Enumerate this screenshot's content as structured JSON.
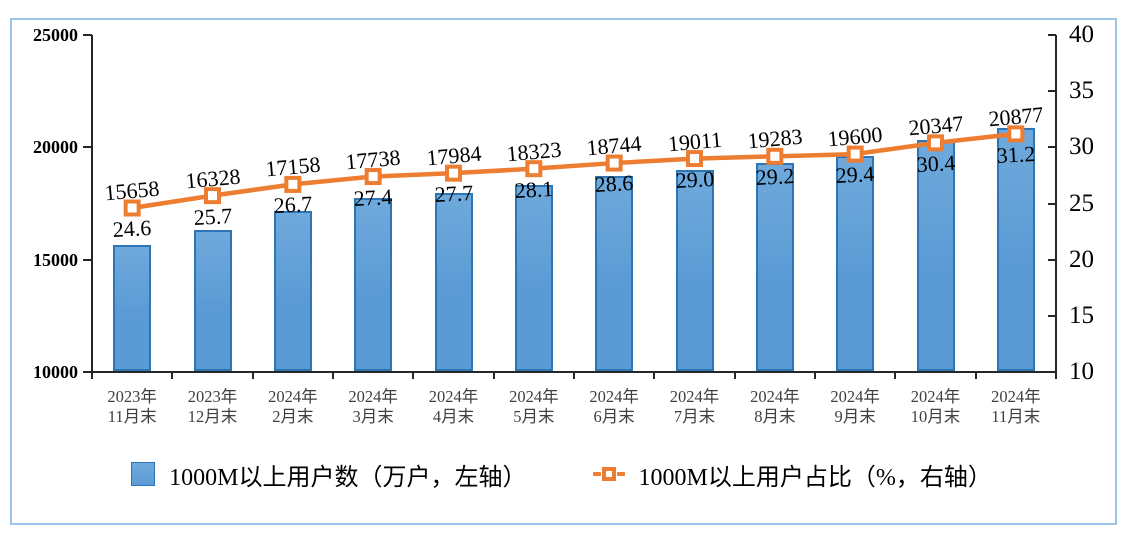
{
  "chart_data": {
    "type": "combo-bar-line",
    "categories": [
      {
        "top": "2023年",
        "bottom": "11月末"
      },
      {
        "top": "2023年",
        "bottom": "12月末"
      },
      {
        "top": "2024年",
        "bottom": "2月末"
      },
      {
        "top": "2024年",
        "bottom": "3月末"
      },
      {
        "top": "2024年",
        "bottom": "4月末"
      },
      {
        "top": "2024年",
        "bottom": "5月末"
      },
      {
        "top": "2024年",
        "bottom": "6月末"
      },
      {
        "top": "2024年",
        "bottom": "7月末"
      },
      {
        "top": "2024年",
        "bottom": "8月末"
      },
      {
        "top": "2024年",
        "bottom": "9月末"
      },
      {
        "top": "2024年",
        "bottom": "10月末"
      },
      {
        "top": "2024年",
        "bottom": "11月末"
      }
    ],
    "series": [
      {
        "name": "1000M以上用户数（万户，左轴）",
        "type": "bar",
        "axis": "left",
        "values": [
          15658,
          16328,
          17158,
          17738,
          17984,
          18323,
          18744,
          19011,
          19283,
          19600,
          20347,
          20877
        ]
      },
      {
        "name": "1000M以上用户占比（%，右轴）",
        "type": "line",
        "axis": "right",
        "values": [
          24.6,
          25.7,
          26.7,
          27.4,
          27.7,
          28.1,
          28.6,
          29.0,
          29.2,
          29.4,
          30.4,
          31.2
        ],
        "value_labels": [
          "24.6",
          "25.7",
          "26.7",
          "27.4",
          "27.7",
          "28.1",
          "28.6",
          "29.0",
          "29.2",
          "29.4",
          "30.4",
          "31.2"
        ]
      }
    ],
    "left_axis": {
      "min": 10000,
      "max": 25000,
      "ticks": [
        10000,
        15000,
        20000,
        25000
      ]
    },
    "right_axis": {
      "min": 10,
      "max": 40,
      "ticks": [
        10,
        15,
        20,
        25,
        30,
        35,
        40
      ]
    },
    "legend_position": "bottom",
    "grid": false,
    "colors": {
      "bar_fill": "#5B9BD5",
      "bar_fill_light": "#6FA9DC",
      "bar_border": "#2E75B6",
      "line": "#ED7D31",
      "marker_fill": "#FFFFFF",
      "frame_border": "#9DC3E6",
      "axis": "#262626"
    }
  }
}
